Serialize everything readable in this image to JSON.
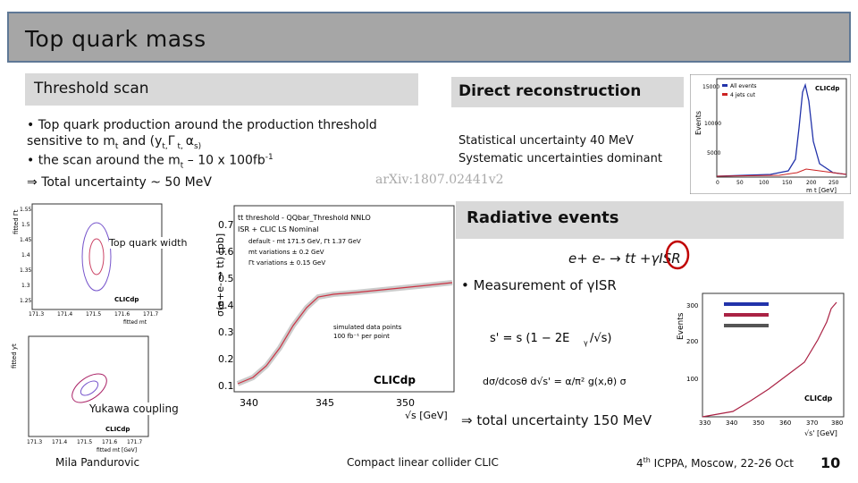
{
  "slide": {
    "title": "Top quark mass",
    "page_number": "10"
  },
  "threshold": {
    "heading": "Threshold scan",
    "bullet1": "Top quark production around the production threshold sensitive to m",
    "bullet1_sub": "t",
    "bullet1_tail": " and (y",
    "bullet1_tail2": "t,",
    "bullet1_gamma": "Γ",
    "bullet1_tail3": " t, ",
    "bullet1_alpha": "α",
    "bullet1_tail4": "s)",
    "bullet2_pre": "the scan around the m",
    "bullet2_sub": "t",
    "bullet2_post": " – 10 x 100fb",
    "bullet2_sup": "-1",
    "implies": "⇒",
    "total": "Total uncertainty ~ 50 MeV",
    "arxiv": "arXiv:1807.02441v2",
    "width_label": "Top quark width",
    "yukawa_label": "Yukawa coupling"
  },
  "direct": {
    "heading": "Direct reconstruction",
    "stat": "Statistical uncertainty 40 MeV",
    "syst": "Systematic uncertainties dominant"
  },
  "radiative": {
    "heading": "Radiative events",
    "process": "e+ e- → tt +γISR",
    "bullet": "Measurement of γISR",
    "total_prefix": "⇒",
    "total": "total uncertainty 150 MeV"
  },
  "footer": {
    "author": "Mila Pandurovic",
    "center": "Compact linear collider CLIC",
    "conf_pre": "4",
    "conf_sup": "th",
    "conf_post": " ICPPA, Moscow, 22-26 Oct"
  },
  "plots": {
    "main": {
      "title": "tt threshold - QQbar_Threshold NNLO",
      "sub": "ISR + CLIC LS Nominal",
      "legend": [
        "default - mt 171.5 GeV, Γt 1.37 GeV",
        "mt variations ± 0.2 GeV",
        "Γt variations ± 0.15 GeV"
      ],
      "ylabel": "σ(e+e- → tt) [pb]",
      "xlabel": "√s [GeV]",
      "xticks": [
        "340",
        "345",
        "350"
      ],
      "yticks": [
        "0.7",
        "0.6",
        "0.5",
        "0.4",
        "0.3",
        "0.2",
        "0.1"
      ],
      "sim_label": "simulated data points",
      "sim_label2": "100 fb⁻¹ per point",
      "logo": "CLICdp"
    },
    "width": {
      "ylabel": "fitted Γt",
      "xlabel": "fitted mt",
      "xticks": [
        "171.3",
        "171.4",
        "171.5",
        "171.6",
        "171.7"
      ],
      "yticks": [
        "1.55",
        "1.5",
        "1.45",
        "1.4",
        "1.35",
        "1.3",
        "1.25"
      ],
      "logo": "CLICdp"
    },
    "yukawa": {
      "ylabel": "fitted yt",
      "xlabel": "fitted mt [GeV]",
      "xticks": [
        "171.3",
        "171.4",
        "171.5",
        "171.6",
        "171.7"
      ],
      "logo": "CLICdp"
    },
    "direct": {
      "ylabel": "Events",
      "xlabel": "m t [GeV]",
      "legend": [
        "All events",
        "4 jets cut"
      ],
      "xticks": [
        "0",
        "50",
        "100",
        "150",
        "200",
        "250"
      ],
      "yticks": [
        "15000",
        "10000",
        "5000"
      ],
      "logo": "CLICdp"
    },
    "radiative": {
      "ylabel": "Events",
      "xlabel": "√s' [GeV]",
      "xticks": [
        "330",
        "340",
        "350",
        "360",
        "370",
        "380"
      ],
      "yticks": [
        "300",
        "200",
        "100"
      ],
      "logo": "CLICdp"
    }
  },
  "colors": {
    "title_bg": "#a6a6a6",
    "heading_bg": "#d9d9d9",
    "highlight_circle": "#c00000"
  }
}
